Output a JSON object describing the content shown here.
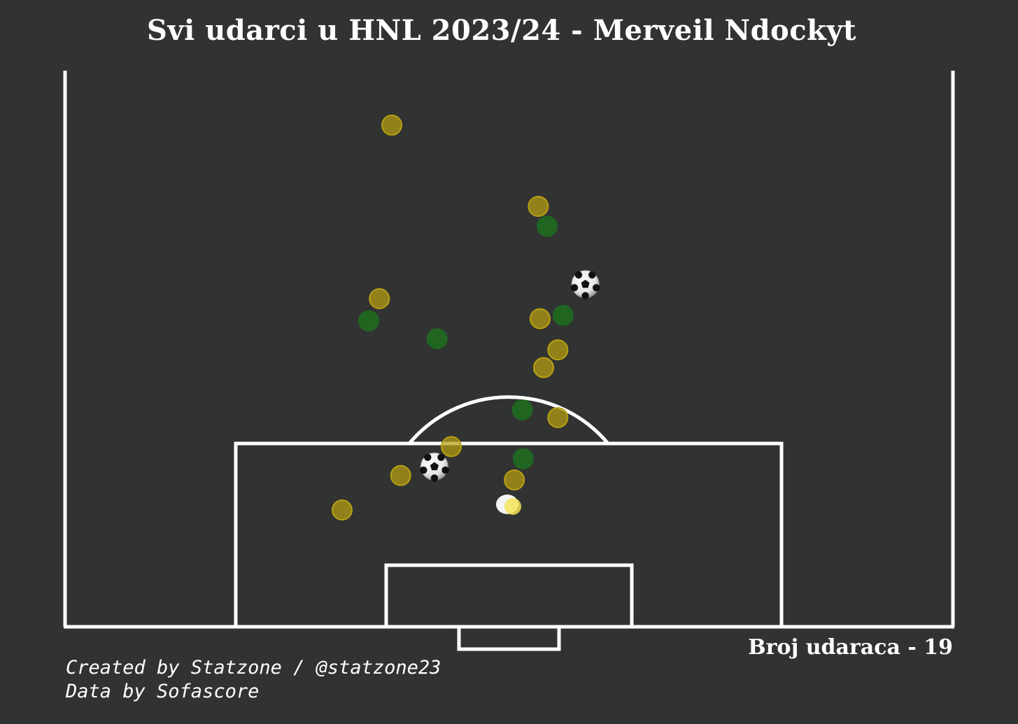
{
  "title": "Svi udarci u HNL 2023/24 - Merveil Ndockyt",
  "shot_count_label": "Broj udaraca - 19",
  "credits": {
    "line1": "Created by Statzone / @statzone23",
    "line2": "Data by Sofascore"
  },
  "colors": {
    "background": "#313332",
    "lines": "#ffffff",
    "on_target": "#b8a012",
    "blocked": "#1a7a1a",
    "goal": "#ffffff"
  },
  "chart_data": {
    "type": "scatter",
    "title": "Svi udarci u HNL 2023/24 - Merveil Ndockyt",
    "xlabel": "",
    "ylabel": "",
    "x_unit": "pitch width (0-100)",
    "y_unit": "distance from goal line (0-50, half pitch)",
    "xlim": [
      0,
      100
    ],
    "ylim": [
      0,
      50
    ],
    "grid": false,
    "legend": "none",
    "series": [
      {
        "category": "on-target",
        "marker": "yellow-circle",
        "points": [
          {
            "x": 36.8,
            "y": 45.1
          },
          {
            "x": 53.3,
            "y": 37.8
          },
          {
            "x": 35.4,
            "y": 29.5
          },
          {
            "x": 53.5,
            "y": 27.7
          },
          {
            "x": 55.5,
            "y": 24.9
          },
          {
            "x": 53.9,
            "y": 23.3
          },
          {
            "x": 55.5,
            "y": 18.8
          },
          {
            "x": 43.5,
            "y": 16.2
          },
          {
            "x": 37.8,
            "y": 13.6
          },
          {
            "x": 50.6,
            "y": 13.2
          },
          {
            "x": 31.2,
            "y": 10.5
          }
        ]
      },
      {
        "category": "blocked",
        "marker": "green-circle",
        "points": [
          {
            "x": 54.3,
            "y": 36.0
          },
          {
            "x": 34.2,
            "y": 27.5
          },
          {
            "x": 56.1,
            "y": 28.0
          },
          {
            "x": 41.9,
            "y": 25.9
          },
          {
            "x": 51.5,
            "y": 19.5
          },
          {
            "x": 51.6,
            "y": 15.1
          }
        ]
      },
      {
        "category": "goal",
        "marker": "soccer-ball-icon",
        "points": [
          {
            "x": 58.6,
            "y": 30.8
          },
          {
            "x": 41.6,
            "y": 14.4
          }
        ]
      }
    ]
  }
}
